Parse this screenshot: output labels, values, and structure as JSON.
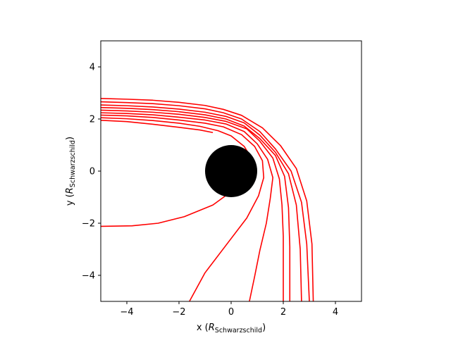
{
  "chart_data": {
    "type": "line",
    "title": "",
    "xlabel_main": "x (",
    "xlabel_sym": "R",
    "xlabel_sub": "Schwarzschild",
    "xlabel_end": ")",
    "ylabel_main": "y (",
    "ylabel_sym": "R",
    "ylabel_sub": "Schwarzschild",
    "ylabel_end": ")",
    "xlim": [
      -5,
      5
    ],
    "ylim": [
      -5,
      5
    ],
    "xticks": [
      -4,
      -2,
      0,
      2,
      4
    ],
    "yticks": [
      -4,
      -2,
      0,
      2,
      4
    ],
    "xtick_labels": [
      "−4",
      "−2",
      "0",
      "2",
      "4"
    ],
    "ytick_labels": [
      "−4",
      "−2",
      "0",
      "2",
      "4"
    ],
    "grid": false,
    "line_color": "#ff0000",
    "black_hole": {
      "center": [
        0,
        0
      ],
      "radius": 1.0,
      "color": "#000000"
    },
    "series": [
      {
        "x": [
          -5.0,
          -4.0,
          -3.0,
          -2.0,
          -1.2,
          -0.7
        ],
        "y": [
          1.95,
          1.9,
          1.8,
          1.68,
          1.58,
          1.48
        ]
      },
      {
        "x": [
          -5.0,
          -4.0,
          -3.0,
          -2.0,
          -1.2,
          -0.5,
          0.0,
          0.5,
          0.9,
          0.4,
          -0.7,
          -1.8,
          -2.8,
          -3.8,
          -5.0
        ],
        "y": [
          2.05,
          2.01,
          1.94,
          1.84,
          1.72,
          1.55,
          1.35,
          0.95,
          0.3,
          -0.5,
          -1.3,
          -1.75,
          -2.0,
          -2.1,
          -2.12
        ]
      },
      {
        "x": [
          -5.0,
          -4.0,
          -3.0,
          -2.0,
          -1.0,
          -0.3,
          0.4,
          0.9,
          1.2,
          1.25,
          1.05,
          0.6,
          -0.2,
          -1.0,
          -1.6
        ],
        "y": [
          2.15,
          2.12,
          2.06,
          1.96,
          1.84,
          1.7,
          1.4,
          0.95,
          0.4,
          -0.25,
          -0.95,
          -1.8,
          -2.85,
          -3.9,
          -5.0
        ]
      },
      {
        "x": [
          -5.0,
          -4.0,
          -3.0,
          -2.0,
          -1.0,
          -0.2,
          0.5,
          1.0,
          1.4,
          1.6,
          1.5,
          1.35,
          1.1,
          0.9,
          0.7
        ],
        "y": [
          2.24,
          2.21,
          2.16,
          2.07,
          1.96,
          1.81,
          1.52,
          1.05,
          0.45,
          -0.25,
          -1.05,
          -2.0,
          -3.05,
          -4.05,
          -5.0
        ]
      },
      {
        "x": [
          -5.0,
          -4.0,
          -3.0,
          -2.0,
          -1.0,
          -0.2,
          0.6,
          1.1,
          1.6,
          1.85,
          1.95,
          2.0,
          2.0
        ],
        "y": [
          2.34,
          2.31,
          2.26,
          2.18,
          2.06,
          1.91,
          1.62,
          1.15,
          0.5,
          -0.3,
          -1.3,
          -2.5,
          -5.0
        ]
      },
      {
        "x": [
          -5.0,
          -4.0,
          -3.0,
          -2.0,
          -1.0,
          -0.2,
          0.5,
          1.1,
          1.7,
          2.05,
          2.2,
          2.25,
          2.25
        ],
        "y": [
          2.44,
          2.41,
          2.36,
          2.28,
          2.16,
          2.0,
          1.73,
          1.25,
          0.6,
          -0.2,
          -1.4,
          -2.9,
          -5.0
        ]
      },
      {
        "x": [
          -5.0,
          -4.0,
          -3.0,
          -2.0,
          -1.0,
          -0.2,
          0.5,
          1.1,
          1.7,
          2.2,
          2.5,
          2.65,
          2.7
        ],
        "y": [
          2.54,
          2.51,
          2.46,
          2.38,
          2.26,
          2.1,
          1.85,
          1.38,
          0.72,
          -0.1,
          -1.3,
          -3.0,
          -5.0
        ]
      },
      {
        "x": [
          -5.0,
          -4.0,
          -3.0,
          -2.0,
          -1.0,
          -0.3,
          0.4,
          1.1,
          1.7,
          2.3,
          2.7,
          2.9,
          3.0
        ],
        "y": [
          2.66,
          2.63,
          2.59,
          2.51,
          2.39,
          2.24,
          2.0,
          1.52,
          0.85,
          0.0,
          -1.2,
          -2.8,
          -5.0
        ]
      },
      {
        "x": [
          -5.0,
          -4.0,
          -3.0,
          -2.0,
          -1.0,
          -0.3,
          0.4,
          1.2,
          1.9,
          2.5,
          2.9,
          3.1,
          3.15
        ],
        "y": [
          2.79,
          2.76,
          2.72,
          2.64,
          2.52,
          2.37,
          2.14,
          1.66,
          0.97,
          0.1,
          -1.15,
          -2.8,
          -5.0
        ]
      }
    ]
  }
}
